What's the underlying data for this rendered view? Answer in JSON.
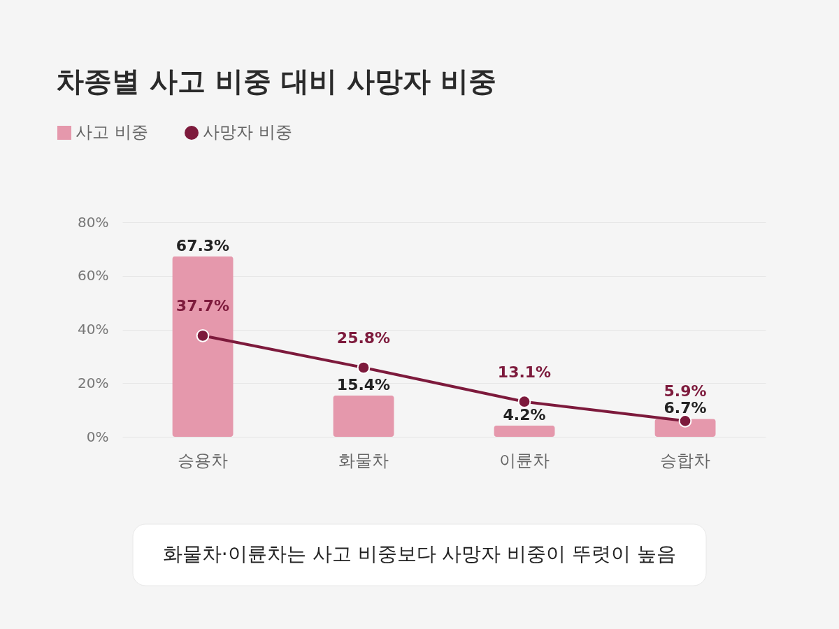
{
  "chart_data": {
    "type": "bar",
    "title": "차종별 사고 비중 대비 사망자 비중",
    "categories": [
      "승용차",
      "화물차",
      "이륜차",
      "승합차"
    ],
    "series": [
      {
        "name": "사고 비중",
        "color": "#e598ac",
        "values": [
          67.3,
          15.4,
          4.2,
          6.7
        ],
        "value_labels": [
          "67.3%",
          "15.4%",
          "4.2%",
          "6.7%"
        ]
      },
      {
        "name": "사망자 비중",
        "type": "line",
        "color": "#7d1a3c",
        "values": [
          37.7,
          25.8,
          13.1,
          5.9
        ],
        "marker": "circle",
        "value_labels": [
          "37.7%",
          "25.8%",
          "13.1%",
          "5.9%"
        ]
      }
    ],
    "ylim": [
      0,
      80
    ],
    "yticks": [
      {
        "value": 0,
        "label": "0%"
      },
      {
        "value": 20,
        "label": "20%"
      },
      {
        "value": 40,
        "label": "40%"
      },
      {
        "value": 60,
        "label": "60%"
      },
      {
        "value": 80,
        "label": "80%"
      }
    ],
    "grid": "y",
    "legend": "top left",
    "annotations": [
      "화물차·이륜차는 사고 비중보다 사망자 비중이 뚜렷이 높음"
    ]
  }
}
